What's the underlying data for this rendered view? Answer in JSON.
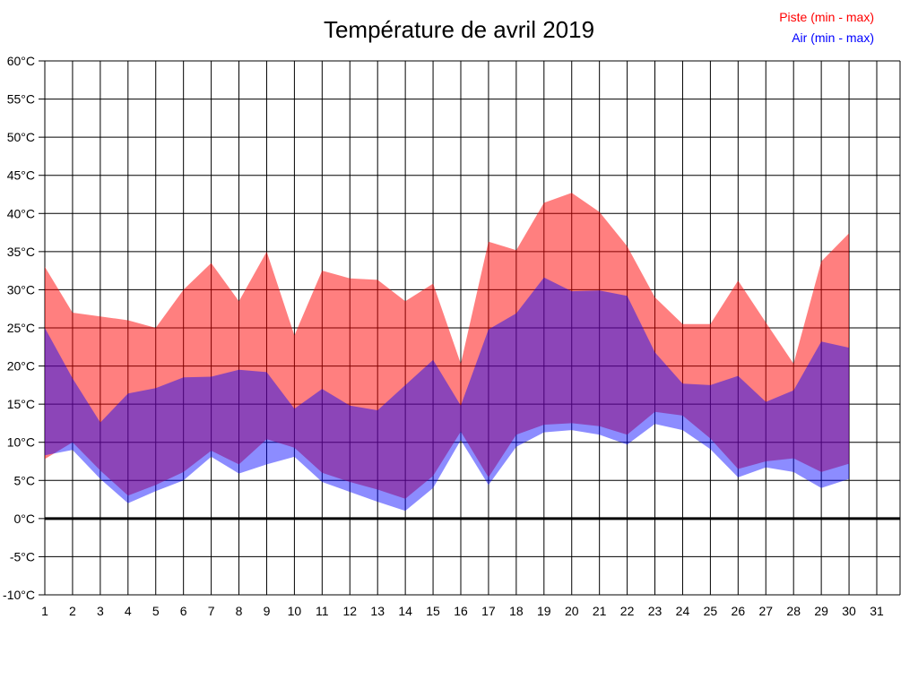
{
  "title": "Température de avril 2019",
  "legend": [
    {
      "label": "Piste (min - max)",
      "color": "#ff0000"
    },
    {
      "label": "Air (min - max)",
      "color": "#0000ff"
    }
  ],
  "chart_data": {
    "type": "area",
    "title": "Température de avril 2019",
    "xlabel": "",
    "ylabel": "",
    "x_days": [
      1,
      2,
      3,
      4,
      5,
      6,
      7,
      8,
      9,
      10,
      11,
      12,
      13,
      14,
      15,
      16,
      17,
      18,
      19,
      20,
      21,
      22,
      23,
      24,
      25,
      26,
      27,
      28,
      29,
      30
    ],
    "x_tick_labels": [
      "1",
      "2",
      "3",
      "4",
      "5",
      "6",
      "7",
      "8",
      "9",
      "10",
      "11",
      "12",
      "13",
      "14",
      "15",
      "16",
      "17",
      "18",
      "19",
      "20",
      "21",
      "22",
      "23",
      "24",
      "25",
      "26",
      "27",
      "28",
      "29",
      "30",
      "31"
    ],
    "xlim": [
      1,
      31
    ],
    "ylim": [
      -10,
      60
    ],
    "y_tick_step": 5,
    "y_tick_suffix": "°C",
    "y_tick_labels": [
      "60°C",
      "55°C",
      "50°C",
      "45°C",
      "40°C",
      "35°C",
      "30°C",
      "25°C",
      "20°C",
      "15°C",
      "10°C",
      "5°C",
      "0°C",
      "-5°C",
      "-10°C"
    ],
    "grid": true,
    "zero_line": 0,
    "series": [
      {
        "name": "Piste (min - max)",
        "color": "#ff0000",
        "opacity": 0.5,
        "max": [
          33,
          27,
          26.5,
          26,
          25,
          30,
          33.5,
          28.5,
          35,
          24,
          32.5,
          31.5,
          31.3,
          28.5,
          30.8,
          20.3,
          36.3,
          35.2,
          41.4,
          42.7,
          40.2,
          35.7,
          29,
          25.5,
          25.5,
          31.2,
          25.7,
          20.3,
          33.7,
          37.4
        ],
        "min": [
          7.8,
          10,
          6.3,
          3,
          4.4,
          6.1,
          8.9,
          7.1,
          10.4,
          9.3,
          6,
          4.8,
          3.8,
          2.6,
          5.6,
          11.4,
          5.4,
          11,
          12.3,
          12.5,
          12.1,
          11,
          14,
          13.5,
          10.5,
          6.5,
          7.5,
          7.9,
          6.1,
          7.2
        ]
      },
      {
        "name": "Air (min - max)",
        "color": "#0000ff",
        "opacity": 0.45,
        "max": [
          25,
          18.4,
          12.6,
          16.4,
          17.1,
          18.5,
          18.6,
          19.5,
          19.2,
          14.4,
          17,
          14.8,
          14.2,
          17.5,
          20.8,
          14.8,
          24.8,
          26.9,
          31.6,
          29.8,
          29.9,
          29.2,
          21.8,
          17.7,
          17.5,
          18.7,
          15.3,
          16.8,
          23.2,
          22.4
        ],
        "min": [
          8.3,
          9,
          5.2,
          2,
          3.6,
          5,
          8.1,
          5.9,
          7.1,
          8.1,
          4.8,
          3.5,
          2.2,
          1,
          4,
          10.3,
          4.4,
          9.4,
          11.3,
          11.6,
          11,
          9.7,
          12.4,
          11.6,
          9.1,
          5.4,
          6.7,
          6.1,
          4,
          5.2
        ]
      }
    ],
    "legend_position": "top-right"
  }
}
